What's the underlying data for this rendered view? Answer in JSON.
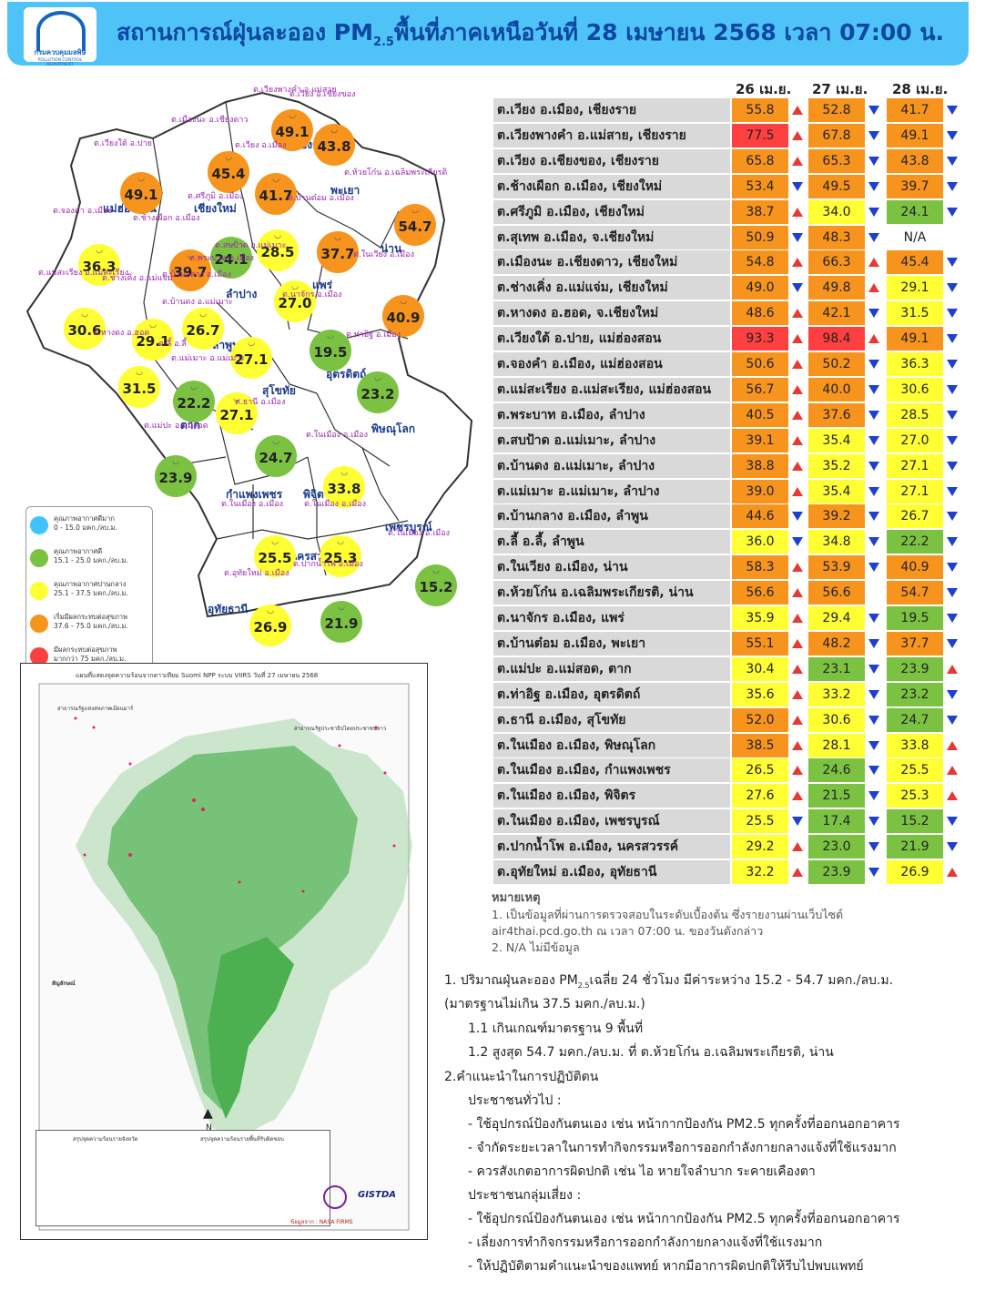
{
  "header": {
    "title_pre": "สถานการณ์ฝุ่นละออง PM",
    "title_sub": "2.5",
    "title_post": "พื้นที่ภาคเหนือวันที่ 28 เมษายน 2568 เวลา 07:00 น.",
    "logo_caption": "กรมควบคุมมลพิษ",
    "logo_caption_en": "POLLUTION CONTROL DEPARTMENT"
  },
  "colors": {
    "header_bg": "#4fc3f7",
    "title": "#0d47a1",
    "very_good": "#40c4ff",
    "good": "#7cc242",
    "moderate": "#ffff33",
    "starting_effect": "#f7941d",
    "unhealthy": "#ff4040"
  },
  "legend": [
    {
      "title": "คุณภาพอากาศดีมาก",
      "range": "0 - 15.0 มคก./ลบ.ม.",
      "color": "#40c4ff"
    },
    {
      "title": "คุณภาพอากาศดี",
      "range": "15.1 - 25.0 มคก./ลบ.ม.",
      "color": "#7cc242"
    },
    {
      "title": "คุณภาพอากาศปานกลาง",
      "range": "25.1 - 37.5 มคก./ลบ.ม.",
      "color": "#ffff33"
    },
    {
      "title": "เริ่มมีผลกระทบต่อสุขภาพ",
      "range": "37.6 - 75.0 มคก./ลบ.ม.",
      "color": "#f7941d"
    },
    {
      "title": "มีผลกระทบต่อสุขภาพ",
      "range": "มากกว่า 75 มคก./ลบ.ม.",
      "color": "#ff4040"
    }
  ],
  "map": {
    "provinces": [
      "เชียงราย",
      "พะเยา",
      "แม่ฮ่องสอน",
      "เชียงใหม่",
      "น่าน",
      "ลำปาง",
      "แพร่",
      "ลำพูน",
      "อุตรดิตถ์",
      "สุโขทัย",
      "ตาก",
      "พิษณุโลก",
      "กำแพงเพชร",
      "พิจิตร",
      "เพชรบูรณ์",
      "นครสวรรค์",
      "อุทัยธานี"
    ],
    "stations": [
      {
        "label": "ต.เวียงพางคำ อ.แม่สาย",
        "value": "49.1",
        "color": "#f7941d"
      },
      {
        "label": "ต.เวียง อ.เชียงของ",
        "value": "43.8",
        "color": "#f7941d"
      },
      {
        "label": "ต.เมืองนะ อ.เชียงดาว",
        "value": "45.4",
        "color": "#f7941d"
      },
      {
        "label": "ต.เวียง อ.เมือง",
        "value": "41.7",
        "color": "#f7941d"
      },
      {
        "label": "ต.เวียงใต้ อ.ปาย",
        "value": "49.1",
        "color": "#f7941d"
      },
      {
        "label": "ต.ห้วยโก๋น อ.เฉลิมพระเกียรติ",
        "value": "54.7",
        "color": "#f7941d"
      },
      {
        "label": "ต.จองคำ อ.เมือง",
        "value": "36.3",
        "color": "#ffff33"
      },
      {
        "label": "ต.ช้างเผือก อ.เมือง",
        "value": "39.7",
        "color": "#f7941d"
      },
      {
        "label": "ต.ศรีภูมิ อ.เมือง",
        "value": "24.1",
        "color": "#7cc242"
      },
      {
        "label": "ต.พระบาท อ.เมือง",
        "value": "28.5",
        "color": "#ffff33"
      },
      {
        "label": "ต.บ้านต๋อม อ.เมือง",
        "value": "37.7",
        "color": "#f7941d"
      },
      {
        "label": "ต.ในเวียง อ.เมือง",
        "value": "40.9",
        "color": "#f7941d"
      },
      {
        "label": "ต.แม่สะเรียง อ.แม่สะเรียง",
        "value": "30.6",
        "color": "#ffff33"
      },
      {
        "label": "ต.ช่างเคิ่ง อ.แม่แจ่ม",
        "value": "29.1",
        "color": "#ffff33"
      },
      {
        "label": "ต.บ้านกลาง อ.เมือง",
        "value": "26.7",
        "color": "#ffff33"
      },
      {
        "label": "ต.สบป้าด อ.แม่เมาะ",
        "value": "27.0",
        "color": "#ffff33"
      },
      {
        "label": "ต.นาจักร อ.เมือง",
        "value": "19.5",
        "color": "#7cc242"
      },
      {
        "label": "ต.บ้านดง อ.แม่เมาะ",
        "value": "27.1",
        "color": "#ffff33"
      },
      {
        "label": "ต.หางดง อ.ฮอด",
        "value": "31.5",
        "color": "#ffff33"
      },
      {
        "label": "ต.ลี้ อ.ลี้",
        "value": "22.2",
        "color": "#7cc242"
      },
      {
        "label": "ต.แม่เมาะ อ.แม่เมาะ",
        "value": "27.1",
        "color": "#ffff33"
      },
      {
        "label": "ต.ท่าอิฐ อ.เมือง",
        "value": "23.2",
        "color": "#7cc242"
      },
      {
        "label": "ต.ธานี อ.เมือง",
        "value": "24.7",
        "color": "#7cc242"
      },
      {
        "label": "ต.แม่ปะ อ.แม่สอด",
        "value": "23.9",
        "color": "#7cc242"
      },
      {
        "label": "ต.ในเมือง อ.เมือง",
        "value": "33.8",
        "color": "#ffff33"
      },
      {
        "label": "ต.ในเมือง อ.เมือง",
        "value": "25.5",
        "color": "#ffff33"
      },
      {
        "label": "ต.ในเมือง อ.เมือง",
        "value": "25.3",
        "color": "#ffff33"
      },
      {
        "label": "ต.ในเมือง อ.เมือง",
        "value": "15.2",
        "color": "#7cc242"
      },
      {
        "label": "ต.อุทัยใหม่ อ.เมือง",
        "value": "26.9",
        "color": "#ffff33"
      },
      {
        "label": "ต.ปากน้ำโพ อ.เมือง",
        "value": "21.9",
        "color": "#7cc242"
      }
    ]
  },
  "satellite": {
    "title": "แผนที่แสดงจุดความร้อนจากดาวเทียม Suomi NPP ระบบ VIIRS วันที่ 27 เมษายน 2568",
    "legend_title": "สัญลักษณ์",
    "summary_left": "สรุปจุดความร้อนรายจังหวัด",
    "summary_right": "สรุปจุดความร้อนรายพื้นที่รับผิดชอบ",
    "source": "ข้อมูลจาก : NASA FIRMS",
    "brand": "GISTDA",
    "label_a": "สาธารณรัฐแห่งสหภาพเมียนมาร์",
    "label_b": "สาธารณรัฐประชาธิปไตยประชาชนลาว",
    "north": "N"
  },
  "table": {
    "col_heads": [
      "26 เม.ย.",
      "27 เม.ย.",
      "28 เม.ย."
    ],
    "rows": [
      {
        "loc": "ต.เวียง อ.เมือง, เชียงราย",
        "v": [
          [
            "55.8",
            "#f7941d",
            "up"
          ],
          [
            "52.8",
            "#f7941d",
            "down"
          ],
          [
            "41.7",
            "#f7941d",
            "down"
          ]
        ]
      },
      {
        "loc": "ต.เวียงพางคำ อ.แม่สาย, เชียงราย",
        "v": [
          [
            "77.5",
            "#ff4040",
            "up"
          ],
          [
            "67.8",
            "#f7941d",
            "down"
          ],
          [
            "49.1",
            "#f7941d",
            "down"
          ]
        ]
      },
      {
        "loc": "ต.เวียง อ.เชียงของ, เชียงราย",
        "v": [
          [
            "65.8",
            "#f7941d",
            "up"
          ],
          [
            "65.3",
            "#f7941d",
            "down"
          ],
          [
            "43.8",
            "#f7941d",
            "down"
          ]
        ]
      },
      {
        "loc": "ต.ช้างเผือก อ.เมือง, เชียงใหม่",
        "v": [
          [
            "53.4",
            "#f7941d",
            "down"
          ],
          [
            "49.5",
            "#f7941d",
            "down"
          ],
          [
            "39.7",
            "#f7941d",
            "down"
          ]
        ]
      },
      {
        "loc": "ต.ศรีภูมิ อ.เมือง, เชียงใหม่",
        "v": [
          [
            "38.7",
            "#f7941d",
            "up"
          ],
          [
            "34.0",
            "#ffff33",
            "down"
          ],
          [
            "24.1",
            "#7cc242",
            "down"
          ]
        ]
      },
      {
        "loc": "ต.สุเทพ  อ.เมือง, จ.เชียงใหม่",
        "v": [
          [
            "50.9",
            "#f7941d",
            "down"
          ],
          [
            "48.3",
            "#f7941d",
            "down"
          ],
          [
            "N/A",
            "#ffffff",
            ""
          ]
        ]
      },
      {
        "loc": "ต.เมืองนะ อ.เชียงดาว, เชียงใหม่",
        "v": [
          [
            "54.8",
            "#f7941d",
            "up"
          ],
          [
            "66.3",
            "#f7941d",
            "up"
          ],
          [
            "45.4",
            "#f7941d",
            "down"
          ]
        ]
      },
      {
        "loc": "ต.ช่างเคิ่ง อ.แม่แจ่ม, เชียงใหม่",
        "v": [
          [
            "49.0",
            "#f7941d",
            "down"
          ],
          [
            "49.8",
            "#f7941d",
            "up"
          ],
          [
            "29.1",
            "#ffff33",
            "down"
          ]
        ]
      },
      {
        "loc": "ต.หางดง อ.ฮอด, จ.เชียงใหม่",
        "v": [
          [
            "48.6",
            "#f7941d",
            "up"
          ],
          [
            "42.1",
            "#f7941d",
            "down"
          ],
          [
            "31.5",
            "#ffff33",
            "down"
          ]
        ]
      },
      {
        "loc": "ต.เวียงใต้ อ.ปาย, แม่ฮ่องสอน",
        "v": [
          [
            "93.3",
            "#ff4040",
            "up"
          ],
          [
            "98.4",
            "#ff4040",
            "up"
          ],
          [
            "49.1",
            "#f7941d",
            "down"
          ]
        ]
      },
      {
        "loc": "ต.จองคำ อ.เมือง, แม่ฮ่องสอน",
        "v": [
          [
            "50.6",
            "#f7941d",
            "up"
          ],
          [
            "50.2",
            "#f7941d",
            "down"
          ],
          [
            "36.3",
            "#ffff33",
            "down"
          ]
        ]
      },
      {
        "loc": "ต.แม่สะเรียง อ.แม่สะเรียง, แม่ฮ่องสอน",
        "v": [
          [
            "56.7",
            "#f7941d",
            "up"
          ],
          [
            "40.0",
            "#f7941d",
            "down"
          ],
          [
            "30.6",
            "#ffff33",
            "down"
          ]
        ]
      },
      {
        "loc": "ต.พระบาท อ.เมือง, ลำปาง",
        "v": [
          [
            "40.5",
            "#f7941d",
            "up"
          ],
          [
            "37.6",
            "#f7941d",
            "down"
          ],
          [
            "28.5",
            "#ffff33",
            "down"
          ]
        ]
      },
      {
        "loc": "ต.สบป้าด อ.แม่เมาะ, ลำปาง",
        "v": [
          [
            "39.1",
            "#f7941d",
            "up"
          ],
          [
            "35.4",
            "#ffff33",
            "down"
          ],
          [
            "27.0",
            "#ffff33",
            "down"
          ]
        ]
      },
      {
        "loc": "ต.บ้านดง อ.แม่เมาะ, ลำปาง",
        "v": [
          [
            "38.8",
            "#f7941d",
            "up"
          ],
          [
            "35.2",
            "#ffff33",
            "down"
          ],
          [
            "27.1",
            "#ffff33",
            "down"
          ]
        ]
      },
      {
        "loc": "ต.แม่เมาะ อ.แม่เมาะ, ลำปาง",
        "v": [
          [
            "39.0",
            "#f7941d",
            "up"
          ],
          [
            "35.4",
            "#ffff33",
            "down"
          ],
          [
            "27.1",
            "#ffff33",
            "down"
          ]
        ]
      },
      {
        "loc": "ต.บ้านกลาง อ.เมือง, ลำพูน",
        "v": [
          [
            "44.6",
            "#f7941d",
            "down"
          ],
          [
            "39.2",
            "#f7941d",
            "down"
          ],
          [
            "26.7",
            "#ffff33",
            "down"
          ]
        ]
      },
      {
        "loc": "ต.ลี้ อ.ลี้, ลำพูน",
        "v": [
          [
            "36.0",
            "#ffff33",
            "down"
          ],
          [
            "34.8",
            "#ffff33",
            "down"
          ],
          [
            "22.2",
            "#7cc242",
            "down"
          ]
        ]
      },
      {
        "loc": "ต.ในเวียง อ.เมือง, น่าน",
        "v": [
          [
            "58.3",
            "#f7941d",
            "up"
          ],
          [
            "53.9",
            "#f7941d",
            "down"
          ],
          [
            "40.9",
            "#f7941d",
            "down"
          ]
        ]
      },
      {
        "loc": "ต.ห้วยโก๋น อ.เฉลิมพระเกียรติ, น่าน",
        "v": [
          [
            "56.6",
            "#f7941d",
            "up"
          ],
          [
            "56.6",
            "#f7941d",
            ""
          ],
          [
            "54.7",
            "#f7941d",
            "down"
          ]
        ]
      },
      {
        "loc": "ต.นาจักร อ.เมือง, แพร่",
        "v": [
          [
            "35.9",
            "#ffff33",
            "up"
          ],
          [
            "29.4",
            "#ffff33",
            "down"
          ],
          [
            "19.5",
            "#7cc242",
            "down"
          ]
        ]
      },
      {
        "loc": "ต.บ้านต๋อม อ.เมือง, พะเยา",
        "v": [
          [
            "55.1",
            "#f7941d",
            "up"
          ],
          [
            "48.2",
            "#f7941d",
            "down"
          ],
          [
            "37.7",
            "#f7941d",
            "down"
          ]
        ]
      },
      {
        "loc": "ต.แม่ปะ อ.แม่สอด, ตาก",
        "v": [
          [
            "30.4",
            "#ffff33",
            "up"
          ],
          [
            "23.1",
            "#7cc242",
            "down"
          ],
          [
            "23.9",
            "#7cc242",
            "up"
          ]
        ]
      },
      {
        "loc": "ต.ท่าอิฐ อ.เมือง, อุตรดิตถ์",
        "v": [
          [
            "35.6",
            "#ffff33",
            "up"
          ],
          [
            "33.2",
            "#ffff33",
            "down"
          ],
          [
            "23.2",
            "#7cc242",
            "down"
          ]
        ]
      },
      {
        "loc": "ต.ธานี อ.เมือง, สุโขทัย",
        "v": [
          [
            "52.0",
            "#f7941d",
            "up"
          ],
          [
            "30.6",
            "#ffff33",
            "down"
          ],
          [
            "24.7",
            "#7cc242",
            "down"
          ]
        ]
      },
      {
        "loc": "ต.ในเมือง อ.เมือง, พิษณุโลก",
        "v": [
          [
            "38.5",
            "#f7941d",
            "up"
          ],
          [
            "28.1",
            "#ffff33",
            "down"
          ],
          [
            "33.8",
            "#ffff33",
            "up"
          ]
        ]
      },
      {
        "loc": "ต.ในเมือง อ.เมือง, กำแพงเพชร",
        "v": [
          [
            "26.5",
            "#ffff33",
            "up"
          ],
          [
            "24.6",
            "#7cc242",
            "down"
          ],
          [
            "25.5",
            "#ffff33",
            "up"
          ]
        ]
      },
      {
        "loc": "ต.ในเมือง อ.เมือง, พิจิตร",
        "v": [
          [
            "27.6",
            "#ffff33",
            "up"
          ],
          [
            "21.5",
            "#7cc242",
            "down"
          ],
          [
            "25.3",
            "#ffff33",
            "up"
          ]
        ]
      },
      {
        "loc": "ต.ในเมือง อ.เมือง, เพชรบูรณ์",
        "v": [
          [
            "25.5",
            "#ffff33",
            "down"
          ],
          [
            "17.4",
            "#7cc242",
            "down"
          ],
          [
            "15.2",
            "#7cc242",
            "down"
          ]
        ]
      },
      {
        "loc": "ต.ปากน้ำโพ อ.เมือง, นครสวรรค์",
        "v": [
          [
            "29.2",
            "#ffff33",
            "up"
          ],
          [
            "23.0",
            "#7cc242",
            "down"
          ],
          [
            "21.9",
            "#7cc242",
            "down"
          ]
        ]
      },
      {
        "loc": "ต.อุทัยใหม่ อ.เมือง, อุทัยธานี",
        "v": [
          [
            "32.2",
            "#ffff33",
            "up"
          ],
          [
            "23.9",
            "#7cc242",
            "down"
          ],
          [
            "26.9",
            "#ffff33",
            "up"
          ]
        ]
      }
    ]
  },
  "notes": {
    "heading": "หมายเหตุ",
    "n1a": "1. เป็นข้อมูลที่ผ่านการตรวจสอบในระดับเบื้องต้น ซึ่งรายงานผ่านเว็บไซต์",
    "n1b": "air4thai.pcd.go.th  ณ  เวลา 07:00  น.  ของวันดังกล่าว",
    "n2": "2. N/A  ไม่มีข้อมูล"
  },
  "summary": {
    "l1a": "1. ปริมาณฝุ่นละออง PM",
    "l1sub": "2.5",
    "l1b": "เฉลี่ย 24 ชั่วโมง มีค่าระหว่าง 15.2 - 54.7 มคก./ลบ.ม.",
    "l2": "(มาตรฐานไม่เกิน 37.5 มคก./ลบ.ม.)",
    "l3": "1.1 เกินเกณฑ์มาตรฐาน 9 พื้นที่",
    "l4": "1.2 สูงสุด 54.7 มคก./ลบ.ม. ที่ ต.ห้วยโก๋น อ.เฉลิมพระเกียรติ, น่าน",
    "l5": "2.คำแนะนำในการปฏิบัติตน",
    "l6": "ประชาชนทั่วไป :",
    "l7": "-  ใช้อุปกรณ์ป้องกันตนเอง  เช่น  หน้ากากป้องกัน  PM2.5  ทุกครั้งที่ออกนอกอาคาร",
    "l8": "-  จำกัดระยะเวลาในการทำกิจกรรมหรือการออกกำลังกายกลางแจ้งที่ใช้แรงมาก",
    "l9": "-  ควรสังเกตอาการผิดปกติ  เช่น  ไอ  หายใจลำบาก  ระคายเคืองตา",
    "l10": "ประชาชนกลุ่มเสี่ยง  :",
    "l11": "-  ใช้อุปกรณ์ป้องกันตนเอง  เช่น  หน้ากากป้องกัน  PM2.5  ทุกครั้งที่ออกนอกอาคาร",
    "l12": "-  เลี่ยงการทำกิจกรรมหรือการออกกำลังกายกลางแจ้งที่ใช้แรงมาก",
    "l13": "-  ให้ปฏิบัติตามคำแนะนำของแพทย์  หากมีอาการผิดปกติให้รีบไปพบแพทย์"
  }
}
